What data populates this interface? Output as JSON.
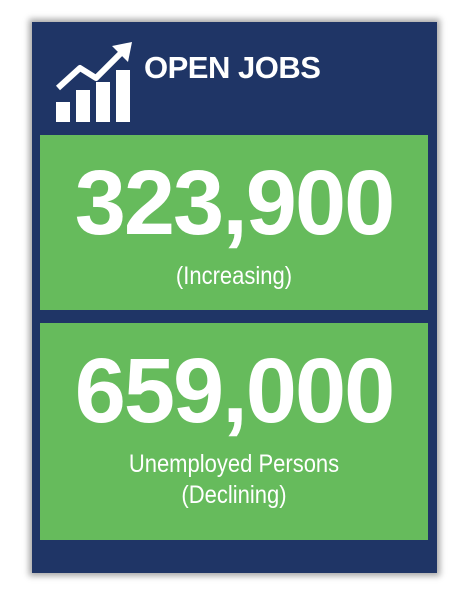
{
  "header": {
    "title": "OPEN JOBS"
  },
  "stats": [
    {
      "value": "323,900",
      "lines": [
        "(Increasing)"
      ]
    },
    {
      "value": "659,000",
      "lines": [
        "Unemployed Persons",
        "(Declining)"
      ]
    }
  ]
}
